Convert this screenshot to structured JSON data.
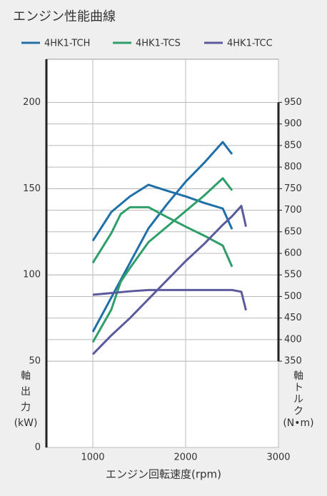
{
  "chart_data": {
    "type": "line",
    "title": "エンジン性能曲線",
    "x_label": "エンジン回転速度(rpm)",
    "y_label": [
      "軸",
      "出",
      "力",
      "(kW)"
    ],
    "y2_label": [
      "軸",
      "ト",
      "ル",
      "ク",
      "(N•m)"
    ],
    "xlim": [
      500,
      3000
    ],
    "xticks": [
      1000,
      2000,
      3000
    ],
    "ylim": [
      0,
      225
    ],
    "yticks": [
      0,
      50,
      100,
      150,
      200
    ],
    "y2lim": [
      150,
      1050
    ],
    "y2ticks": [
      350,
      400,
      450,
      500,
      550,
      600,
      650,
      700,
      750,
      800,
      850,
      900,
      950
    ],
    "grid": true,
    "legend": "top",
    "series": [
      {
        "name": "4HK1-TCH",
        "color": "#1f6fa8",
        "x": [
          1000,
          1200,
          1400,
          1600,
          1800,
          2000,
          2200,
          2400,
          2500
        ],
        "values": [
          67,
          87,
          107,
          127,
          141,
          154,
          165,
          177,
          170
        ],
        "torque": [
          629,
          696,
          732,
          759,
          745,
          732,
          717,
          704,
          656
        ]
      },
      {
        "name": "4HK1-TCS",
        "color": "#2e9e6a",
        "x": [
          1000,
          1200,
          1300,
          1400,
          1600,
          1800,
          2000,
          2200,
          2400,
          2500
        ],
        "values": [
          61,
          80,
          96,
          104,
          119,
          128,
          137,
          146,
          156,
          149
        ],
        "torque": [
          578,
          647,
          691,
          707,
          707,
          684,
          662,
          641,
          618,
          569
        ]
      },
      {
        "name": "4HK1-TCC",
        "color": "#5b5a9c",
        "x": [
          1000,
          1200,
          1400,
          1600,
          1800,
          2000,
          2200,
          2400,
          2500,
          2600,
          2650
        ],
        "values": [
          54,
          65,
          75,
          86,
          97,
          108,
          118,
          129,
          134,
          140,
          128
        ],
        "torque": [
          504,
          508,
          512,
          515,
          515,
          515,
          515,
          515,
          515,
          511,
          468
        ]
      }
    ]
  }
}
